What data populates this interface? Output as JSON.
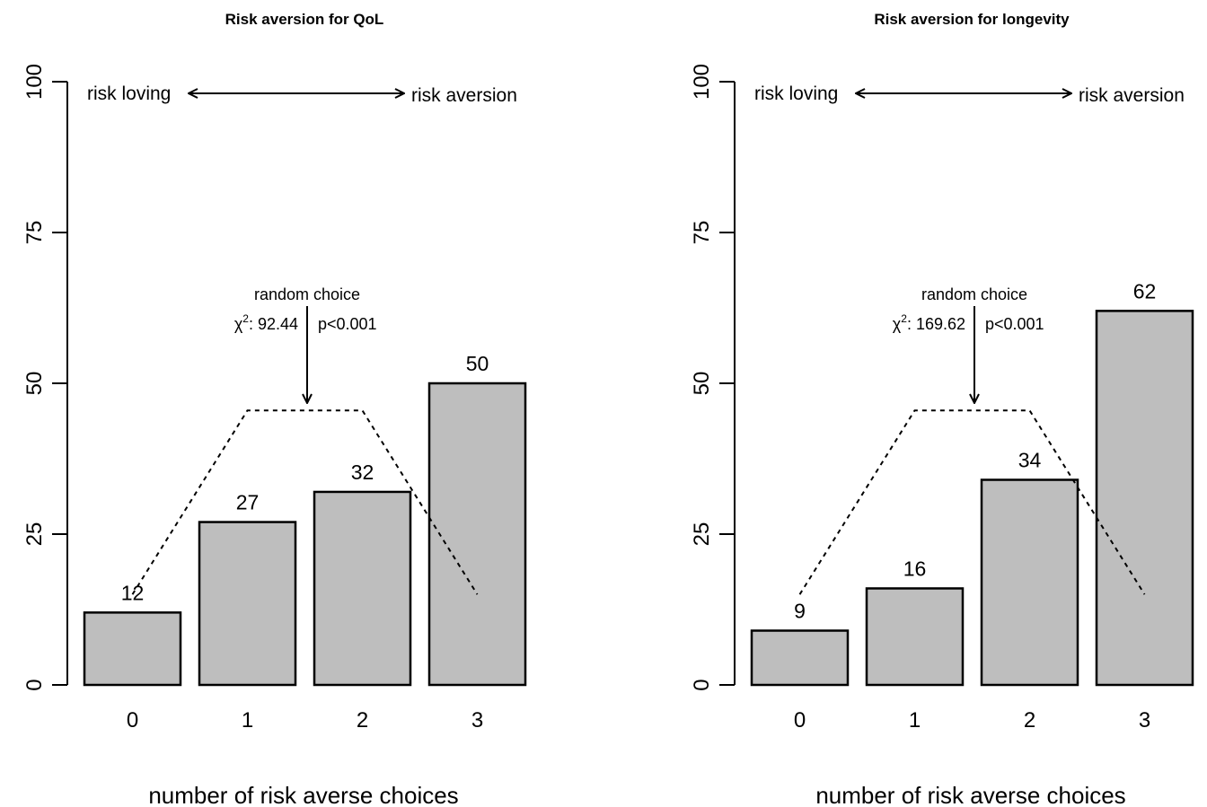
{
  "chart_data": [
    {
      "type": "bar",
      "title": "Risk aversion for QoL",
      "xlabel": "number of risk averse choices",
      "ylabel": "",
      "ylim": [
        0,
        100
      ],
      "yticks": [
        "0",
        "25",
        "50",
        "75",
        "100"
      ],
      "categories": [
        "0",
        "1",
        "2",
        "3"
      ],
      "values": [
        12,
        27,
        32,
        50
      ],
      "value_labels": [
        "12",
        "27",
        "32",
        "50"
      ],
      "reference_line": {
        "style": "dotted",
        "values": [
          15,
          45.5,
          45.5,
          15
        ]
      },
      "annotations": {
        "left_label": "risk loving",
        "right_label": "risk aversion",
        "random_label": "random choice",
        "chi_symbol": "χ",
        "chi_sup": "2",
        "chi_value": ": 92.44",
        "p_value": "p<0.001"
      },
      "colors": {
        "bar_fill": "#bebebe",
        "bar_stroke": "#000000"
      }
    },
    {
      "type": "bar",
      "title": "Risk aversion for longevity",
      "xlabel": "number of risk averse choices",
      "ylabel": "",
      "ylim": [
        0,
        100
      ],
      "yticks": [
        "0",
        "25",
        "50",
        "75",
        "100"
      ],
      "categories": [
        "0",
        "1",
        "2",
        "3"
      ],
      "values": [
        9,
        16,
        34,
        62
      ],
      "value_labels": [
        "9",
        "16",
        "34",
        "62"
      ],
      "reference_line": {
        "style": "dotted",
        "values": [
          15,
          45.5,
          45.5,
          15
        ]
      },
      "annotations": {
        "left_label": "risk loving",
        "right_label": "risk aversion",
        "random_label": "random choice",
        "chi_symbol": "χ",
        "chi_sup": "2",
        "chi_value": ": 169.62",
        "p_value": "p<0.001"
      },
      "colors": {
        "bar_fill": "#bebebe",
        "bar_stroke": "#000000"
      }
    }
  ]
}
